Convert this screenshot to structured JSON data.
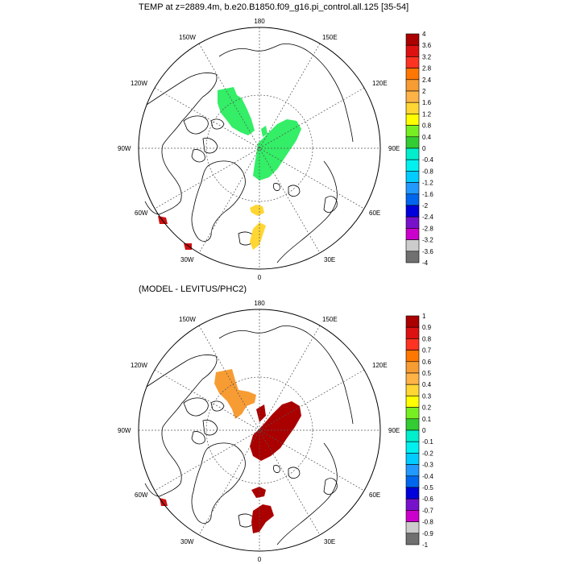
{
  "panels": [
    {
      "id": "top",
      "title": "TEMP at z=2889.4m, b.e20.B1850.f09_g16.pi_control.all.125 [35-54]",
      "longitude_labels": [
        "180",
        "150E",
        "120E",
        "90E",
        "60E",
        "30E",
        "0",
        "30W",
        "60W",
        "90W",
        "120W",
        "150W"
      ],
      "colorbar_labels": [
        "4",
        "3.6",
        "3.2",
        "2.8",
        "2.4",
        "2",
        "1.6",
        "1.2",
        "0.8",
        "0.4",
        "0",
        "-0.4",
        "-0.8",
        "-1.2",
        "-1.6",
        "-2",
        "-2.4",
        "-2.8",
        "-3.2",
        "-3.6",
        "-4"
      ],
      "anomalies": [
        {
          "region": "canada-basin",
          "color": "#33ee66"
        },
        {
          "region": "eurasian-basin",
          "color": "#33ee66"
        },
        {
          "region": "fram-strait",
          "color": "#ffd633"
        },
        {
          "region": "greenland-sea",
          "color": "#ffd633"
        },
        {
          "region": "labrador-sea",
          "color": "#cc1111"
        },
        {
          "region": "north-atlantic",
          "color": "#cc1111"
        }
      ]
    },
    {
      "id": "bottom",
      "title": "(MODEL - LEVITUS/PHC2)",
      "longitude_labels": [
        "180",
        "150E",
        "120E",
        "90E",
        "60E",
        "30E",
        "0",
        "30W",
        "60W",
        "90W",
        "120W",
        "150W"
      ],
      "colorbar_labels": [
        "1",
        "0.9",
        "0.8",
        "0.7",
        "0.6",
        "0.5",
        "0.4",
        "0.3",
        "0.2",
        "0.1",
        "0",
        "-0.1",
        "-0.2",
        "-0.3",
        "-0.4",
        "-0.5",
        "-0.6",
        "-0.7",
        "-0.8",
        "-0.9",
        "-1"
      ],
      "anomalies": [
        {
          "region": "canada-basin",
          "color": "#f79c33"
        },
        {
          "region": "eurasian-basin",
          "color": "#aa0000"
        },
        {
          "region": "fram-strait",
          "color": "#aa0000"
        },
        {
          "region": "greenland-sea",
          "color": "#aa0000"
        },
        {
          "region": "labrador-sea",
          "color": "#cc1111"
        }
      ]
    }
  ],
  "colorbar_colors": [
    "#aa0000",
    "#dd1111",
    "#ff3322",
    "#ff7700",
    "#f79c33",
    "#ffb347",
    "#ffd633",
    "#ffff00",
    "#77ee22",
    "#33cc33",
    "#00eecc",
    "#00f0f0",
    "#00ccff",
    "#2299ff",
    "#0066ee",
    "#0000dd",
    "#7711cc",
    "#cc00cc",
    "#cccccc",
    "#707070"
  ]
}
